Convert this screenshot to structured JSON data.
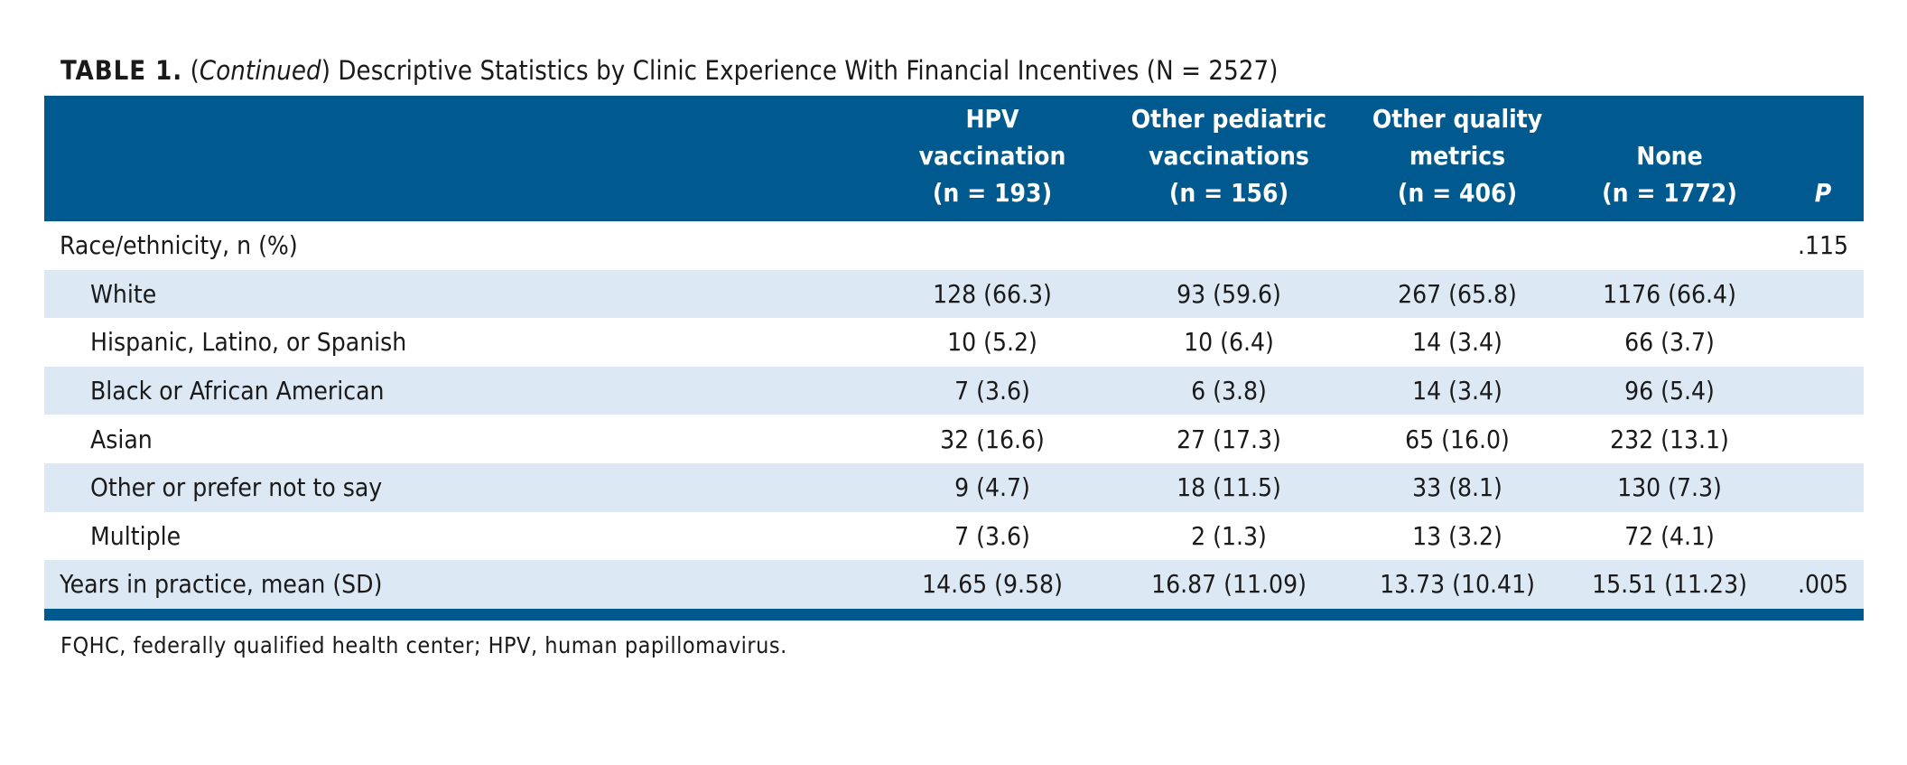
{
  "caption": {
    "label": "TABLE 1.",
    "continued_open": "(",
    "continued": "Continued",
    "continued_close": ")",
    "title": " Descriptive Statistics by Clinic Experience With Financial Incentives (N = 2527)"
  },
  "columns": [
    {
      "lines": [
        "HPV",
        "vaccination",
        "(n = 193)"
      ]
    },
    {
      "lines": [
        "Other pediatric",
        "vaccinations",
        "(n = 156)"
      ]
    },
    {
      "lines": [
        "Other quality",
        "metrics",
        "(n = 406)"
      ]
    },
    {
      "lines": [
        "None",
        "(n = 1772)"
      ]
    },
    {
      "lines": [
        "P"
      ]
    }
  ],
  "rows": [
    {
      "label": "Race/ethnicity, n (%)",
      "indent": false,
      "values": [
        "",
        "",
        "",
        "",
        ".115"
      ]
    },
    {
      "label": "White",
      "indent": true,
      "values": [
        "128 (66.3)",
        "93 (59.6)",
        "267 (65.8)",
        "1176 (66.4)",
        ""
      ]
    },
    {
      "label": "Hispanic, Latino, or Spanish",
      "indent": true,
      "values": [
        "10 (5.2)",
        "10 (6.4)",
        "14 (3.4)",
        "66 (3.7)",
        ""
      ]
    },
    {
      "label": "Black or African American",
      "indent": true,
      "values": [
        "7 (3.6)",
        "6 (3.8)",
        "14 (3.4)",
        "96 (5.4)",
        ""
      ]
    },
    {
      "label": "Asian",
      "indent": true,
      "values": [
        "32 (16.6)",
        "27 (17.3)",
        "65 (16.0)",
        "232 (13.1)",
        ""
      ]
    },
    {
      "label": "Other or prefer not to say",
      "indent": true,
      "values": [
        "9 (4.7)",
        "18 (11.5)",
        "33 (8.1)",
        "130 (7.3)",
        ""
      ]
    },
    {
      "label": "Multiple",
      "indent": true,
      "values": [
        "7 (3.6)",
        "2 (1.3)",
        "13 (3.2)",
        "72 (4.1)",
        ""
      ]
    },
    {
      "label": "Years in practice, mean (SD)",
      "indent": false,
      "values": [
        "14.65 (9.58)",
        "16.87 (11.09)",
        "13.73 (10.41)",
        "15.51 (11.23)",
        ".005"
      ]
    }
  ],
  "footnote": "FQHC, federally qualified health center; HPV, human papillomavirus.",
  "colors": {
    "header_bg": "#005a8f",
    "row_shade": "#dde8f5"
  }
}
